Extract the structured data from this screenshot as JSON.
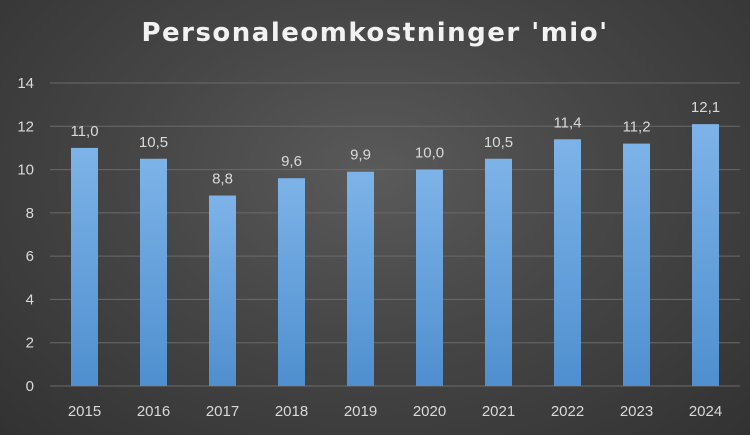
{
  "chart_data": {
    "type": "bar",
    "title": "Personaleomkostninger 'mio'",
    "categories": [
      "2015",
      "2016",
      "2017",
      "2018",
      "2019",
      "2020",
      "2021",
      "2022",
      "2023",
      "2024"
    ],
    "values": [
      11.0,
      10.5,
      8.8,
      9.6,
      9.9,
      10.0,
      10.5,
      11.4,
      11.2,
      12.1
    ],
    "data_labels": [
      "11,0",
      "10,5",
      "8,8",
      "9,6",
      "9,9",
      "10,0",
      "10,5",
      "11,4",
      "11,2",
      "12,1"
    ],
    "ylim": [
      0,
      14
    ],
    "yticks": [
      0,
      2,
      4,
      6,
      8,
      10,
      12,
      14
    ],
    "grid": true,
    "legend": "none",
    "bar_color": "#6fa8e0",
    "xlabel": "",
    "ylabel": ""
  }
}
